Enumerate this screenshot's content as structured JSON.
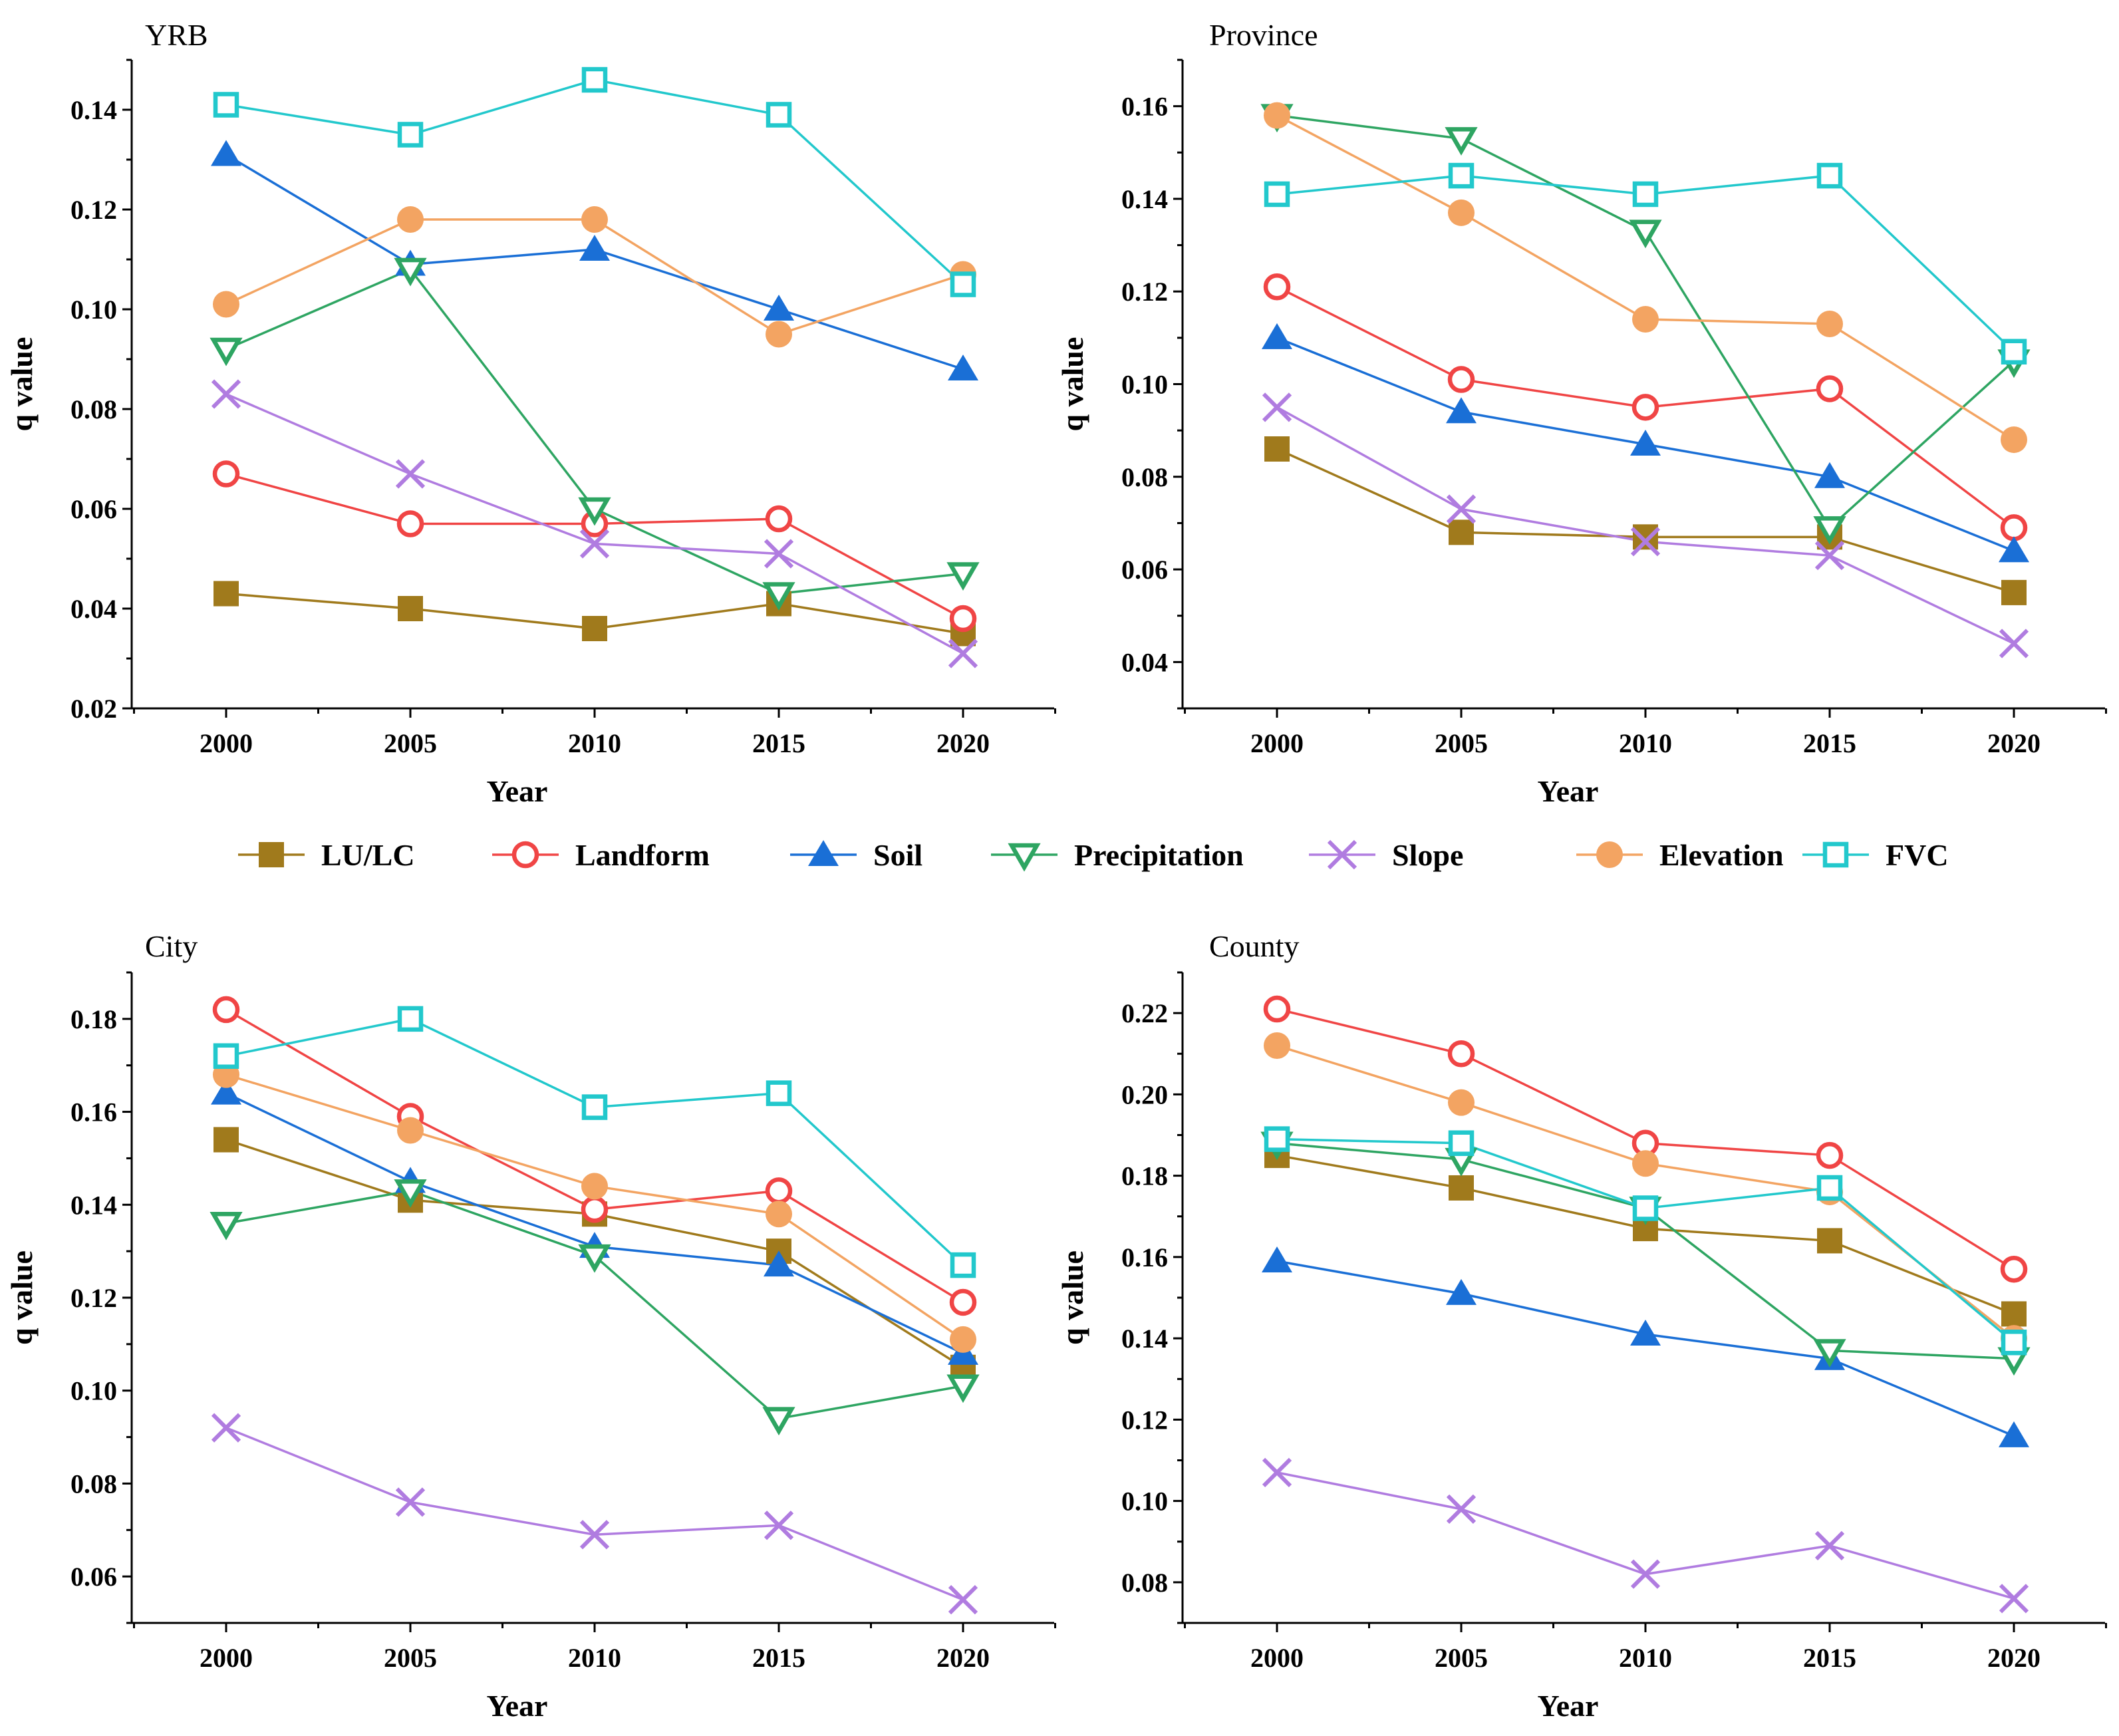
{
  "legend": [
    {
      "name": "LU/LC",
      "marker": "square-filled",
      "color": "#A07A1C"
    },
    {
      "name": "Landform",
      "marker": "circle-open",
      "color": "#F04545"
    },
    {
      "name": "Soil",
      "marker": "triangle-filled",
      "color": "#1A6FD6"
    },
    {
      "name": "Precipitation",
      "marker": "triangle-down-open",
      "color": "#2EA562"
    },
    {
      "name": "Slope",
      "marker": "x",
      "color": "#B07CE0"
    },
    {
      "name": "Elevation",
      "marker": "circle-filled",
      "color": "#F3A462"
    },
    {
      "name": "FVC",
      "marker": "square-open",
      "color": "#22C8CC"
    }
  ],
  "chart_data": [
    {
      "type": "line",
      "title": "YRB",
      "xlabel": "Year",
      "ylabel": "q value",
      "x": [
        2000,
        2005,
        2010,
        2015,
        2020
      ],
      "ylim": [
        0.02,
        0.15
      ],
      "yticks": [
        0.02,
        0.04,
        0.06,
        0.08,
        0.1,
        0.12,
        0.14
      ],
      "ytick_labels": [
        "0.02",
        "0.04",
        "0.06",
        "0.08",
        "0.10",
        "0.12",
        "0.14"
      ],
      "series": [
        {
          "name": "LU/LC",
          "values": [
            0.043,
            0.04,
            0.036,
            0.041,
            0.035
          ]
        },
        {
          "name": "Landform",
          "values": [
            0.067,
            0.057,
            0.057,
            0.058,
            0.038
          ]
        },
        {
          "name": "Soil",
          "values": [
            0.131,
            0.109,
            0.112,
            0.1,
            0.088
          ]
        },
        {
          "name": "Precipitation",
          "values": [
            0.092,
            0.108,
            0.06,
            0.043,
            0.047
          ]
        },
        {
          "name": "Slope",
          "values": [
            0.083,
            0.067,
            0.053,
            0.051,
            0.031
          ]
        },
        {
          "name": "Elevation",
          "values": [
            0.101,
            0.118,
            0.118,
            0.095,
            0.107
          ]
        },
        {
          "name": "FVC",
          "values": [
            0.141,
            0.135,
            0.146,
            0.139,
            0.105
          ]
        }
      ]
    },
    {
      "type": "line",
      "title": "Province",
      "xlabel": "Year",
      "ylabel": "q value",
      "x": [
        2000,
        2005,
        2010,
        2015,
        2020
      ],
      "ylim": [
        0.03,
        0.17
      ],
      "yticks": [
        0.04,
        0.06,
        0.08,
        0.1,
        0.12,
        0.14,
        0.16
      ],
      "ytick_labels": [
        "0.04",
        "0.06",
        "0.08",
        "0.10",
        "0.12",
        "0.14",
        "0.16"
      ],
      "series": [
        {
          "name": "LU/LC",
          "values": [
            0.086,
            0.068,
            0.067,
            0.067,
            0.055
          ]
        },
        {
          "name": "Landform",
          "values": [
            0.121,
            0.101,
            0.095,
            0.099,
            0.069
          ]
        },
        {
          "name": "Soil",
          "values": [
            0.11,
            0.094,
            0.087,
            0.08,
            0.064
          ]
        },
        {
          "name": "Precipitation",
          "values": [
            0.158,
            0.153,
            0.133,
            0.069,
            0.105
          ]
        },
        {
          "name": "Slope",
          "values": [
            0.095,
            0.073,
            0.066,
            0.063,
            0.044
          ]
        },
        {
          "name": "Elevation",
          "values": [
            0.158,
            0.137,
            0.114,
            0.113,
            0.088
          ]
        },
        {
          "name": "FVC",
          "values": [
            0.141,
            0.145,
            0.141,
            0.145,
            0.107
          ]
        }
      ]
    },
    {
      "type": "line",
      "title": "City",
      "xlabel": "Year",
      "ylabel": "q value",
      "x": [
        2000,
        2005,
        2010,
        2015,
        2020
      ],
      "ylim": [
        0.05,
        0.19
      ],
      "yticks": [
        0.06,
        0.08,
        0.1,
        0.12,
        0.14,
        0.16,
        0.18
      ],
      "ytick_labels": [
        "0.06",
        "0.08",
        "0.10",
        "0.12",
        "0.14",
        "0.16",
        "0.18"
      ],
      "series": [
        {
          "name": "LU/LC",
          "values": [
            0.154,
            0.141,
            0.138,
            0.13,
            0.105
          ]
        },
        {
          "name": "Landform",
          "values": [
            0.182,
            0.159,
            0.139,
            0.143,
            0.119
          ]
        },
        {
          "name": "Soil",
          "values": [
            0.164,
            0.145,
            0.131,
            0.127,
            0.108
          ]
        },
        {
          "name": "Precipitation",
          "values": [
            0.136,
            0.143,
            0.129,
            0.094,
            0.101
          ]
        },
        {
          "name": "Slope",
          "values": [
            0.092,
            0.076,
            0.069,
            0.071,
            0.055
          ]
        },
        {
          "name": "Elevation",
          "values": [
            0.168,
            0.156,
            0.144,
            0.138,
            0.111
          ]
        },
        {
          "name": "FVC",
          "values": [
            0.172,
            0.18,
            0.161,
            0.164,
            0.127
          ]
        }
      ]
    },
    {
      "type": "line",
      "title": "County",
      "xlabel": "Year",
      "ylabel": "q value",
      "x": [
        2000,
        2005,
        2010,
        2015,
        2020
      ],
      "ylim": [
        0.07,
        0.23
      ],
      "yticks": [
        0.08,
        0.1,
        0.12,
        0.14,
        0.16,
        0.18,
        0.2,
        0.22
      ],
      "ytick_labels": [
        "0.08",
        "0.10",
        "0.12",
        "0.14",
        "0.16",
        "0.18",
        "0.20",
        "0.22"
      ],
      "series": [
        {
          "name": "LU/LC",
          "values": [
            0.185,
            0.177,
            0.167,
            0.164,
            0.146
          ]
        },
        {
          "name": "Landform",
          "values": [
            0.221,
            0.21,
            0.188,
            0.185,
            0.157
          ]
        },
        {
          "name": "Soil",
          "values": [
            0.159,
            0.151,
            0.141,
            0.135,
            0.116
          ]
        },
        {
          "name": "Precipitation",
          "values": [
            0.188,
            0.184,
            0.172,
            0.137,
            0.135
          ]
        },
        {
          "name": "Slope",
          "values": [
            0.107,
            0.098,
            0.082,
            0.089,
            0.076
          ]
        },
        {
          "name": "Elevation",
          "values": [
            0.212,
            0.198,
            0.183,
            0.176,
            0.14
          ]
        },
        {
          "name": "FVC",
          "values": [
            0.189,
            0.188,
            0.172,
            0.177,
            0.139
          ]
        }
      ]
    }
  ]
}
